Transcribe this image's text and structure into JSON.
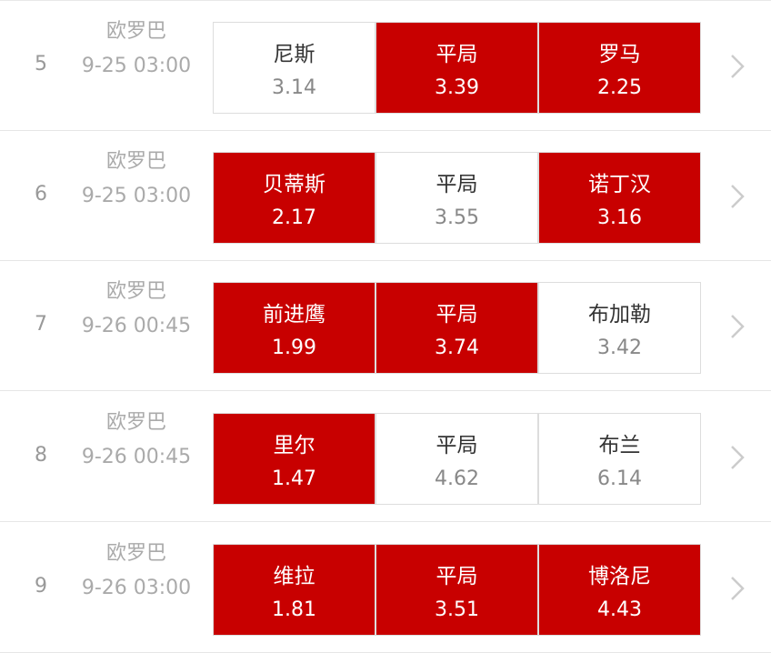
{
  "colors": {
    "selected": "#c80000",
    "unselected": "#ffffff"
  },
  "matches": [
    {
      "no": "5",
      "league": "欧罗巴",
      "time": "9-25 03:00",
      "options": [
        {
          "name": "尼斯",
          "odds": "3.14",
          "selected": false
        },
        {
          "name": "平局",
          "odds": "3.39",
          "selected": true
        },
        {
          "name": "罗马",
          "odds": "2.25",
          "selected": true
        }
      ]
    },
    {
      "no": "6",
      "league": "欧罗巴",
      "time": "9-25 03:00",
      "options": [
        {
          "name": "贝蒂斯",
          "odds": "2.17",
          "selected": true
        },
        {
          "name": "平局",
          "odds": "3.55",
          "selected": false
        },
        {
          "name": "诺丁汉",
          "odds": "3.16",
          "selected": true
        }
      ]
    },
    {
      "no": "7",
      "league": "欧罗巴",
      "time": "9-26 00:45",
      "options": [
        {
          "name": "前进鹰",
          "odds": "1.99",
          "selected": true
        },
        {
          "name": "平局",
          "odds": "3.74",
          "selected": true
        },
        {
          "name": "布加勒",
          "odds": "3.42",
          "selected": false
        }
      ]
    },
    {
      "no": "8",
      "league": "欧罗巴",
      "time": "9-26 00:45",
      "options": [
        {
          "name": "里尔",
          "odds": "1.47",
          "selected": true
        },
        {
          "name": "平局",
          "odds": "4.62",
          "selected": false
        },
        {
          "name": "布兰",
          "odds": "6.14",
          "selected": false
        }
      ]
    },
    {
      "no": "9",
      "league": "欧罗巴",
      "time": "9-26 03:00",
      "options": [
        {
          "name": "维拉",
          "odds": "1.81",
          "selected": true
        },
        {
          "name": "平局",
          "odds": "3.51",
          "selected": true
        },
        {
          "name": "博洛尼",
          "odds": "4.43",
          "selected": true
        }
      ]
    }
  ],
  "icons": {
    "row_action": "chevron-right-icon"
  }
}
